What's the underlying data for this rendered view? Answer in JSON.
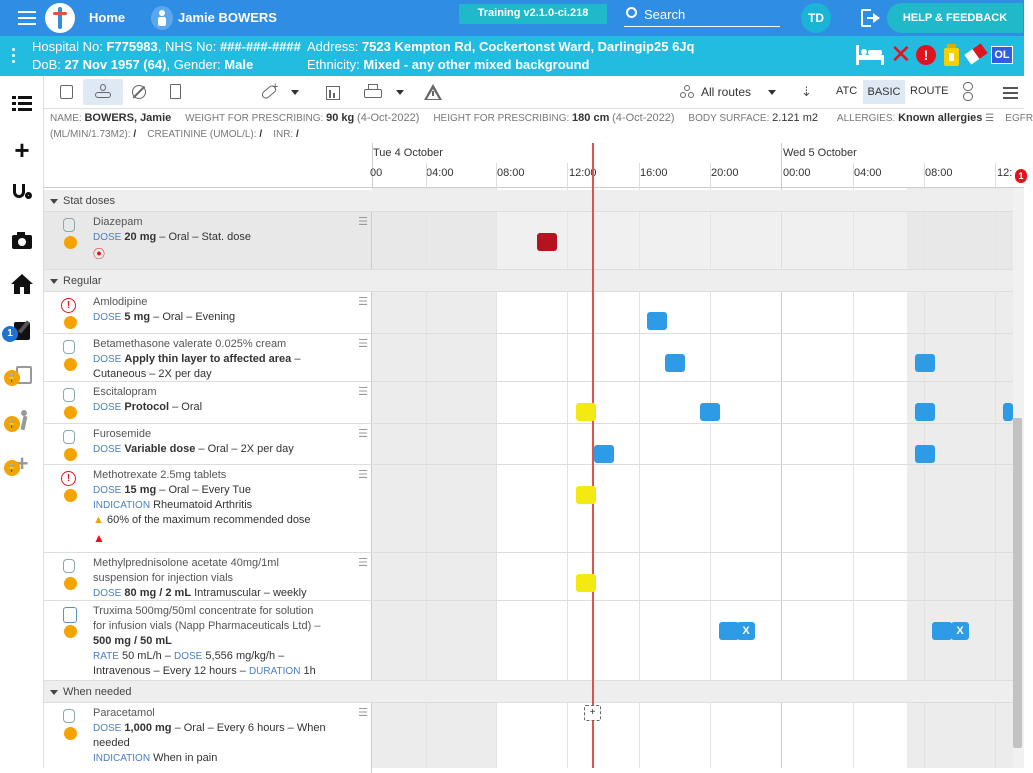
{
  "topbar": {
    "home_label": "Home",
    "patient_name": "Jamie BOWERS",
    "version": "Training v2.1.0-ci.218",
    "search_label": "Search",
    "user_initials": "TD",
    "help_label": "HELP & FEEDBACK"
  },
  "banner": {
    "hospital_no_label": "Hospital No:",
    "hospital_no": "F775983",
    "nhs_label": "NHS No:",
    "nhs_no": "###-###-####",
    "address_label": "Address:",
    "address": "7523 Kempton Rd, Cockertonst Ward, Darlingip25 6Jq",
    "dob_label": "DoB:",
    "dob": "27 Nov 1957 (64)",
    "gender_label": "Gender:",
    "gender": "Male",
    "ethnicity_label": "Ethnicity:",
    "ethnicity": "Mixed - any other mixed background",
    "badge_ol": "OL"
  },
  "sidebar": {
    "badge_count": "1"
  },
  "toolbar": {
    "routes_label": "All routes",
    "atc_label": "ATC",
    "basic_label": "BASIC",
    "route_label": "ROUTE"
  },
  "info": {
    "name_label": "NAME:",
    "name": "BOWERS, Jamie",
    "weight_label": "WEIGHT FOR PRESCRIBING:",
    "weight": "90 kg",
    "weight_date": "(4-Oct-2022)",
    "height_label": "HEIGHT FOR PRESCRIBING:",
    "height": "180 cm",
    "height_date": "(4-Oct-2022)",
    "bsa_label": "BODY SURFACE:",
    "bsa": "2.121 m2",
    "allergies_label": "ALLERGIES:",
    "allergies": "Known allergies",
    "egfr_label": "EGFR",
    "egfr_unit": "(ML/MIN/1.73M2):",
    "egfr_value": "/",
    "creat_label": "CREATININE (UMOL/L):",
    "creat_value": "/",
    "inr_label": "INR:",
    "inr_value": "/"
  },
  "timeline": {
    "day1": "Tue 4 October",
    "day2": "Wed 5 October",
    "ticks": [
      "00",
      "04:00",
      "08:00",
      "12:00",
      "16:00",
      "20:00",
      "00:00",
      "04:00",
      "08:00",
      "12:"
    ],
    "badge": "1"
  },
  "sections": {
    "stat": "Stat doses",
    "regular": "Regular",
    "when_needed": "When needed"
  },
  "meds": {
    "diazepam": {
      "name": "Diazepam",
      "dose_label": "DOSE",
      "dose": "20 mg",
      "detail": "– Oral – Stat. dose"
    },
    "amlodipine": {
      "name": "Amlodipine",
      "dose_label": "DOSE",
      "dose": "5 mg",
      "detail": "– Oral – Evening"
    },
    "betamethasone": {
      "name": "Betamethasone valerate 0.025% cream",
      "dose_label": "DOSE",
      "dose": "Apply thin layer to affected area",
      "detail1": "–",
      "detail2": "Cutaneous – 2X per day"
    },
    "escitalopram": {
      "name": "Escitalopram",
      "dose_label": "DOSE",
      "dose": "Protocol",
      "detail": "– Oral"
    },
    "furosemide": {
      "name": "Furosemide",
      "dose_label": "DOSE",
      "dose": "Variable dose",
      "detail": "– Oral – 2X per day"
    },
    "methotrexate": {
      "name": "Methotrexate 2.5mg tablets",
      "dose_label": "DOSE",
      "dose": "15 mg",
      "detail": "– Oral – Every Tue",
      "ind_label": "INDICATION",
      "indication": "Rheumatoid Arthritis",
      "warning": "60% of the maximum recommended dose"
    },
    "methylpred": {
      "name1": "Methylprednisolone acetate 40mg/1ml",
      "name2": "suspension for injection vials",
      "dose_label": "DOSE",
      "dose": "80 mg / 2 mL",
      "detail": "Intramuscular – weekly"
    },
    "truxima": {
      "name1": "Truxima 500mg/50ml concentrate for solution",
      "name2": "for infusion vials (Napp Pharmaceuticals Ltd) –",
      "name3": "500 mg / 50 mL",
      "rate_label": "RATE",
      "rate": "50 mL/h –",
      "dose_label": "DOSE",
      "dose": "5,556 mg/kg/h –",
      "detail": "Intravenous – Every 12 hours –",
      "duration_label": "DURATION",
      "duration": "1h",
      "x1": "X",
      "x2": "X"
    },
    "paracetamol": {
      "name": "Paracetamol",
      "dose_label": "DOSE",
      "dose": "1,000 mg",
      "detail1": "– Oral – Every 6 hours – When",
      "detail2": "needed",
      "ind_label": "INDICATION",
      "indication": "When in pain",
      "add": "+"
    }
  },
  "colors": {
    "topbar": "#2f8de4",
    "banner": "#22bce0",
    "dose_blue": "#2e9be6",
    "dose_yellow": "#f2ea11",
    "dose_red": "#b3141e",
    "now_line": "#e0534d"
  }
}
